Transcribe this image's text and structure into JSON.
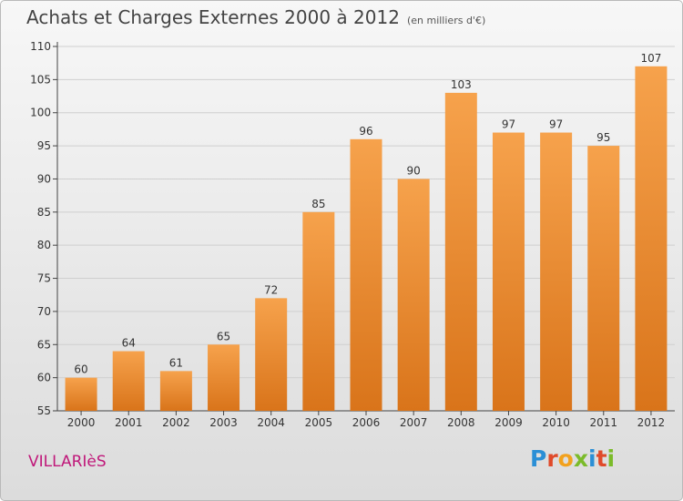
{
  "header": {
    "title": "Achats et Charges Externes 2000 à 2012",
    "unit": "(en milliers d'€)"
  },
  "footer": {
    "commune": "VILLARIèS",
    "logo_letters": [
      "P",
      "r",
      "o",
      "x",
      "i",
      "t",
      "i"
    ]
  },
  "colors": {
    "bar_top": "#f6a24c",
    "bar_bottom": "#d9741a",
    "grid": "#cfcfcf",
    "axis": "#444444"
  },
  "chart_data": {
    "type": "bar",
    "categories": [
      "2000",
      "2001",
      "2002",
      "2003",
      "2004",
      "2005",
      "2006",
      "2007",
      "2008",
      "2009",
      "2010",
      "2011",
      "2012"
    ],
    "values": [
      60,
      64,
      61,
      65,
      72,
      85,
      96,
      90,
      103,
      97,
      97,
      95,
      107
    ],
    "data_labels": [
      "60",
      "64",
      "61",
      "65",
      "72",
      "85",
      "96",
      "90",
      "103",
      "97",
      "97",
      "95",
      "107"
    ],
    "ylim": [
      55,
      110
    ],
    "yticks": [
      "55",
      "60",
      "65",
      "70",
      "75",
      "80",
      "85",
      "90",
      "95",
      "100",
      "105",
      "110"
    ],
    "grid": true
  }
}
